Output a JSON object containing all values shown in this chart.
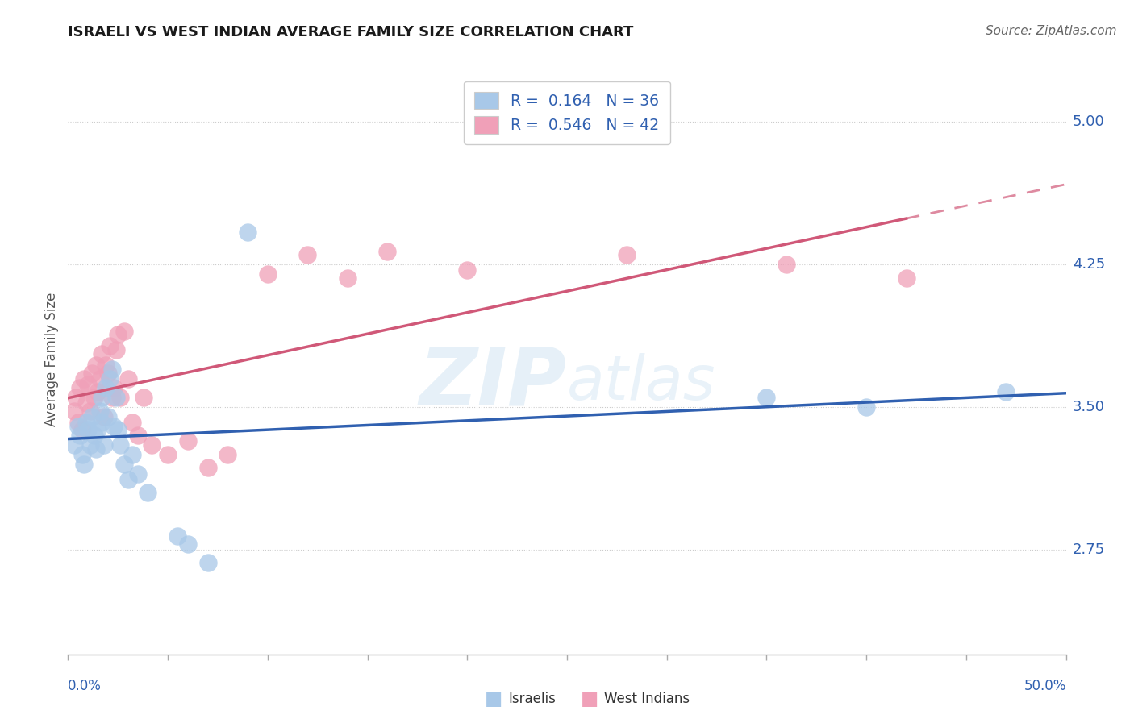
{
  "title": "ISRAELI VS WEST INDIAN AVERAGE FAMILY SIZE CORRELATION CHART",
  "source": "Source: ZipAtlas.com",
  "ylabel": "Average Family Size",
  "yticks": [
    2.75,
    3.5,
    4.25,
    5.0
  ],
  "xlim": [
    0.0,
    0.5
  ],
  "ylim": [
    2.2,
    5.3
  ],
  "israeli_R": 0.164,
  "israeli_N": 36,
  "westindian_R": 0.546,
  "westindian_N": 42,
  "israeli_color": "#a8c8e8",
  "westindian_color": "#f0a0b8",
  "israeli_line_color": "#3060b0",
  "westindian_line_color": "#d05878",
  "label_color": "#3060b0",
  "text_color": "#333333",
  "israeli_x": [
    0.003,
    0.005,
    0.006,
    0.007,
    0.008,
    0.009,
    0.01,
    0.011,
    0.012,
    0.013,
    0.014,
    0.015,
    0.016,
    0.017,
    0.017,
    0.018,
    0.019,
    0.02,
    0.021,
    0.022,
    0.023,
    0.024,
    0.025,
    0.026,
    0.028,
    0.03,
    0.032,
    0.035,
    0.04,
    0.055,
    0.06,
    0.07,
    0.09,
    0.35,
    0.4,
    0.47
  ],
  "israeli_y": [
    3.3,
    3.4,
    3.35,
    3.25,
    3.2,
    3.42,
    3.38,
    3.3,
    3.45,
    3.35,
    3.28,
    3.38,
    3.48,
    3.42,
    3.55,
    3.3,
    3.6,
    3.45,
    3.65,
    3.7,
    3.4,
    3.55,
    3.38,
    3.3,
    3.2,
    3.12,
    3.25,
    3.15,
    3.05,
    2.82,
    2.78,
    2.68,
    4.42,
    3.55,
    3.5,
    3.58
  ],
  "westindian_x": [
    0.003,
    0.004,
    0.005,
    0.006,
    0.007,
    0.008,
    0.009,
    0.01,
    0.011,
    0.012,
    0.013,
    0.014,
    0.015,
    0.016,
    0.017,
    0.018,
    0.019,
    0.02,
    0.021,
    0.022,
    0.023,
    0.024,
    0.025,
    0.026,
    0.028,
    0.03,
    0.032,
    0.035,
    0.038,
    0.042,
    0.05,
    0.06,
    0.07,
    0.08,
    0.1,
    0.12,
    0.14,
    0.16,
    0.2,
    0.28,
    0.36,
    0.42
  ],
  "westindian_y": [
    3.48,
    3.55,
    3.42,
    3.6,
    3.38,
    3.65,
    3.52,
    3.62,
    3.48,
    3.68,
    3.55,
    3.72,
    3.58,
    3.65,
    3.78,
    3.45,
    3.72,
    3.68,
    3.82,
    3.55,
    3.6,
    3.8,
    3.88,
    3.55,
    3.9,
    3.65,
    3.42,
    3.35,
    3.55,
    3.3,
    3.25,
    3.32,
    3.18,
    3.25,
    4.2,
    4.3,
    4.18,
    4.32,
    4.22,
    4.3,
    4.25,
    4.18
  ]
}
